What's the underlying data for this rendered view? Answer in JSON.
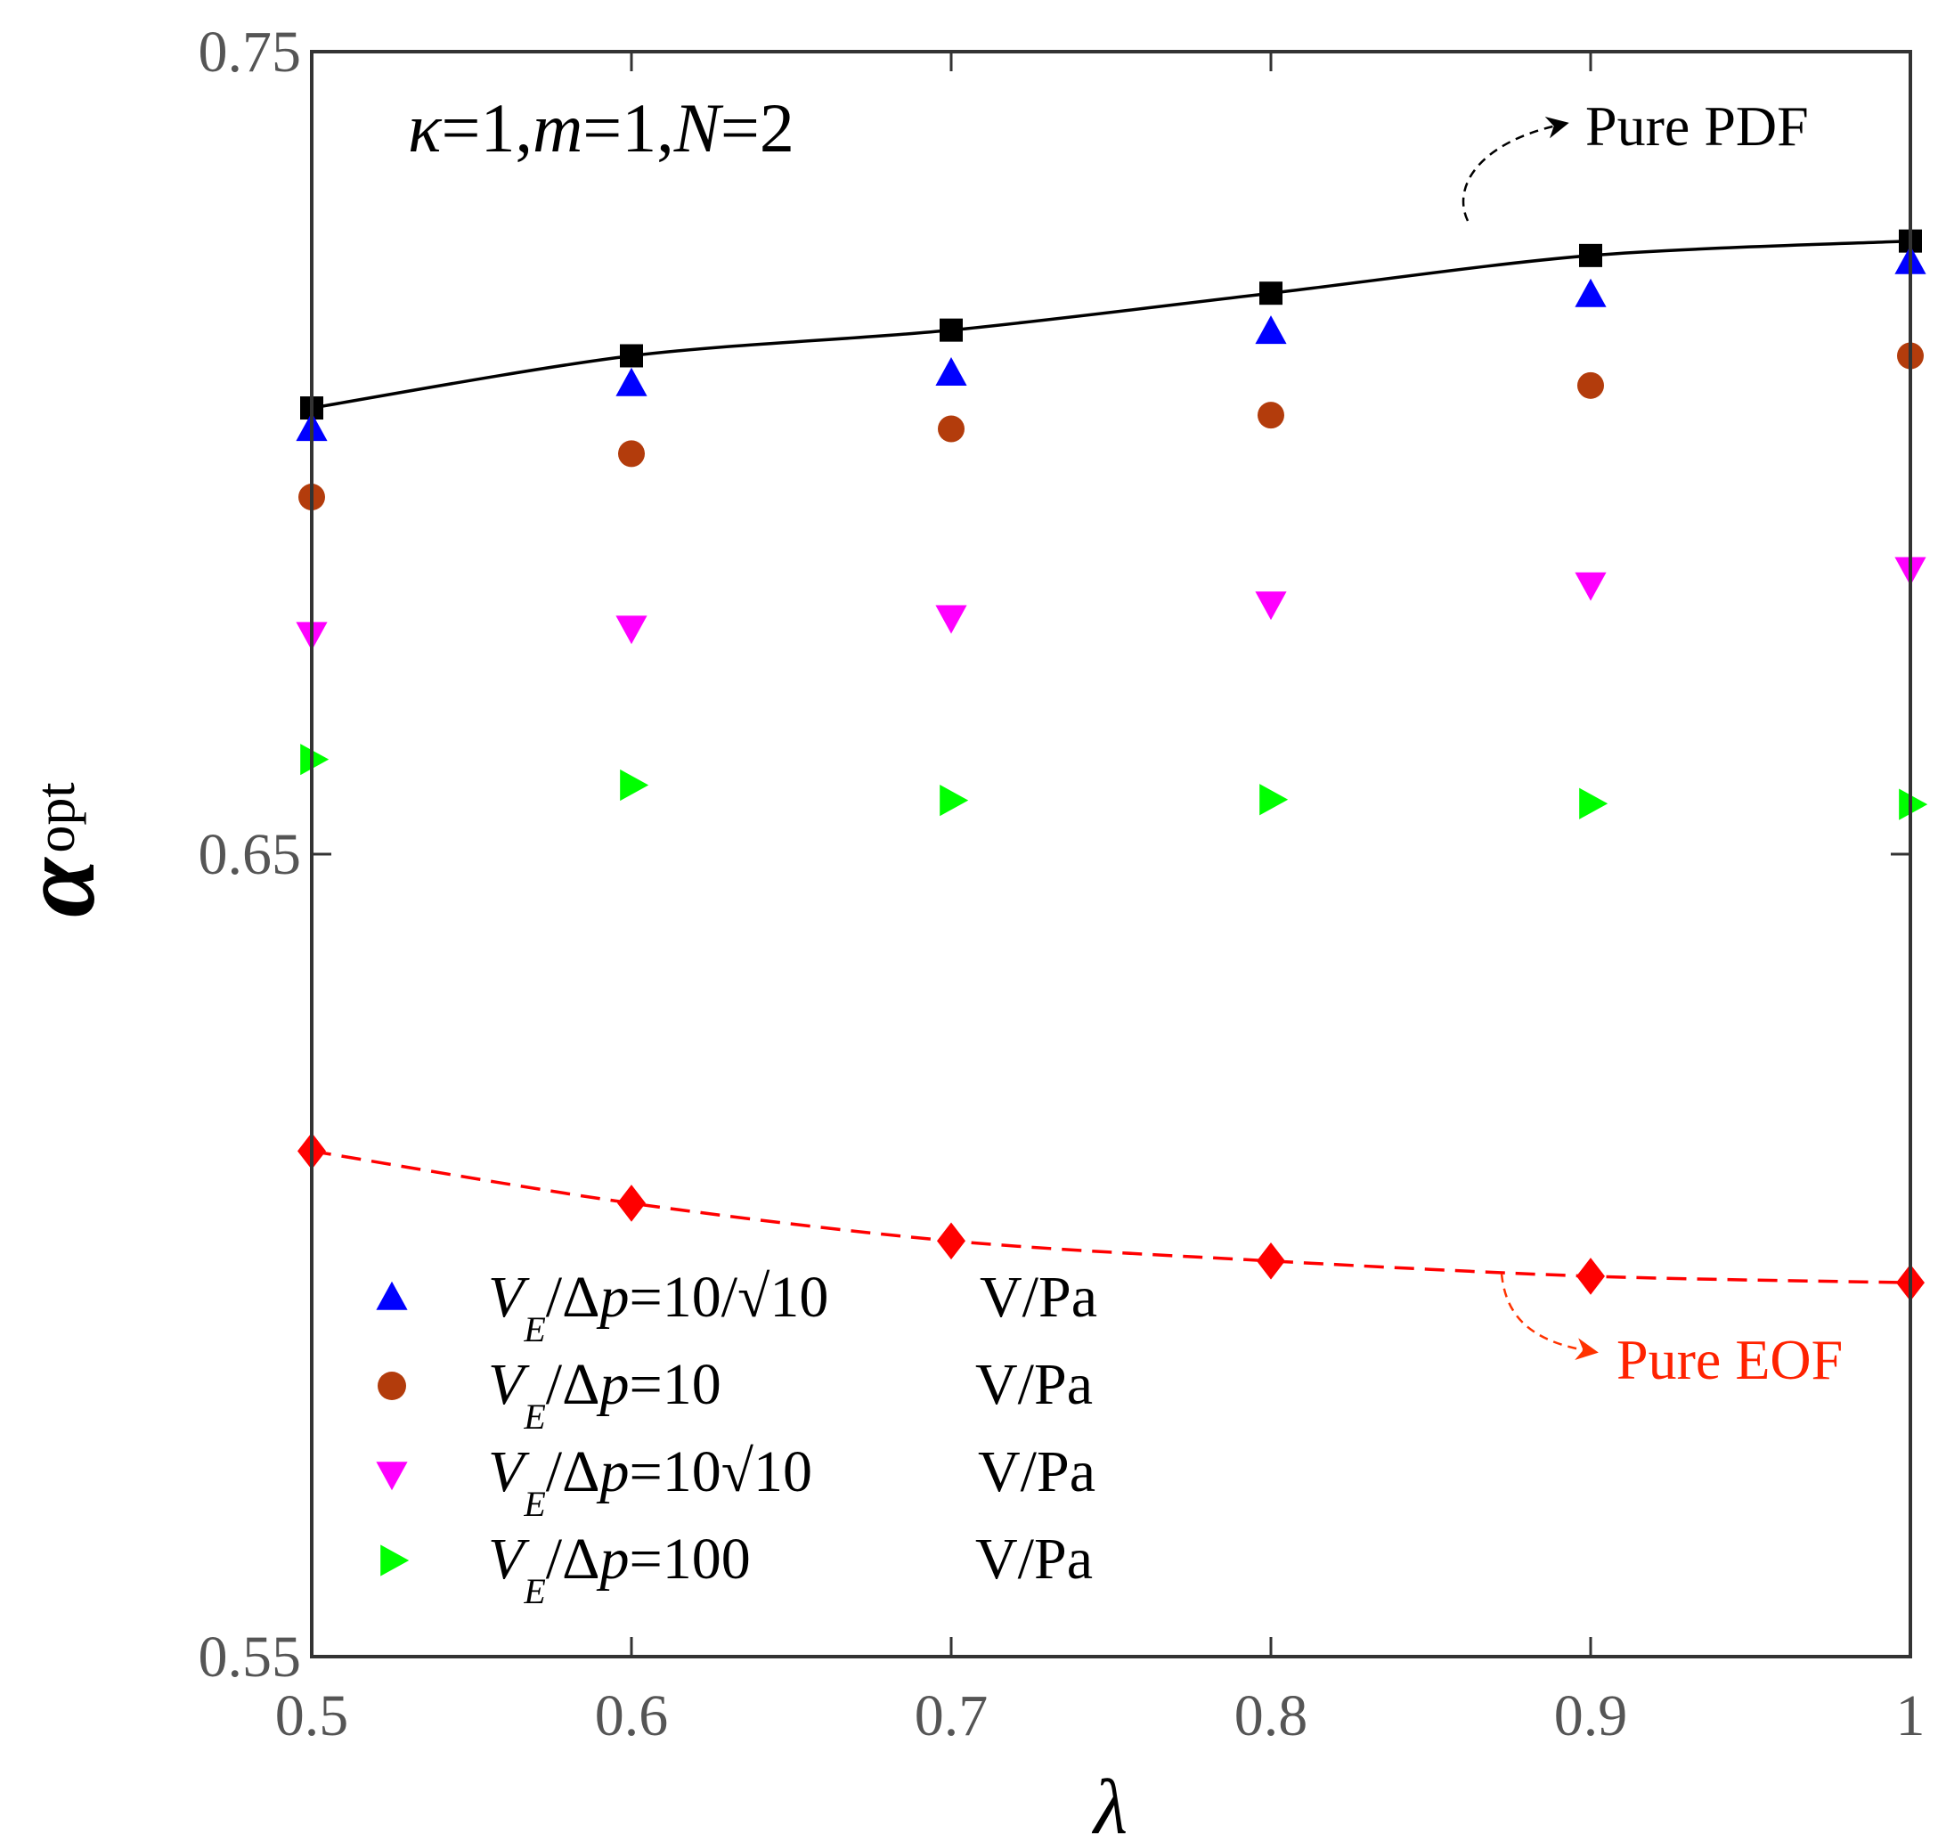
{
  "chart_data": {
    "type": "scatter",
    "xlabel": "λ",
    "ylabel": "α",
    "ylabel_sub": "opt",
    "x": [
      0.5,
      0.6,
      0.7,
      0.8,
      0.9,
      1.0
    ],
    "xlim": [
      0.5,
      1.0
    ],
    "ylim": [
      0.55,
      0.75
    ],
    "xticks": [
      "0.5",
      "0.6",
      "0.7",
      "0.8",
      "0.9",
      "1"
    ],
    "yticks": [
      "0.55",
      "0.65",
      "0.75"
    ],
    "params_text": "κ=1,m=1,N=2",
    "series": [
      {
        "name": "Pure PDF",
        "marker": "square",
        "color": "#000000",
        "line": "solid",
        "values": [
          0.7056,
          0.7121,
          0.7153,
          0.7199,
          0.7246,
          0.7264
        ]
      },
      {
        "name": "V_E/Δp=10/√10 V/Pa",
        "marker": "triangle-up",
        "color": "#0000ff",
        "line": "none",
        "values": [
          0.7029,
          0.7085,
          0.7098,
          0.715,
          0.7196,
          0.7237
        ]
      },
      {
        "name": "V_E/Δp=10 V/Pa",
        "marker": "circle",
        "color": "#b33c0c",
        "line": "none",
        "values": [
          0.6945,
          0.6999,
          0.703,
          0.7047,
          0.7084,
          0.7121
        ]
      },
      {
        "name": "V_E/Δp=10√10 V/Pa",
        "marker": "triangle-down",
        "color": "#ff00ff",
        "line": "none",
        "values": [
          0.6775,
          0.6783,
          0.6796,
          0.6813,
          0.6837,
          0.6856
        ]
      },
      {
        "name": "V_E/Δp=100 V/Pa",
        "marker": "triangle-right",
        "color": "#00ff00",
        "line": "none",
        "values": [
          0.6618,
          0.6586,
          0.6567,
          0.6568,
          0.6563,
          0.6562
        ]
      },
      {
        "name": "Pure EOF",
        "marker": "diamond",
        "color": "#ff0000",
        "line": "dashed",
        "values": [
          0.613,
          0.6065,
          0.6018,
          0.5993,
          0.5974,
          0.5966
        ]
      }
    ],
    "annotations": {
      "pdf_label": "Pure PDF",
      "eof_label": "Pure EOF"
    },
    "legend": [
      {
        "var": "V",
        "sub": "E",
        "rest": "/Δp=",
        "num": "10/√10",
        "unit": "V/Pa"
      },
      {
        "var": "V",
        "sub": "E",
        "rest": "/Δp=",
        "num": "10",
        "unit": "V/Pa"
      },
      {
        "var": "V",
        "sub": "E",
        "rest": "/Δp=",
        "num": "10√10",
        "unit": "V/Pa"
      },
      {
        "var": "V",
        "sub": "E",
        "rest": "/Δp=",
        "num": "100",
        "unit": "V/Pa"
      }
    ],
    "legend_position": "bottom-left"
  }
}
